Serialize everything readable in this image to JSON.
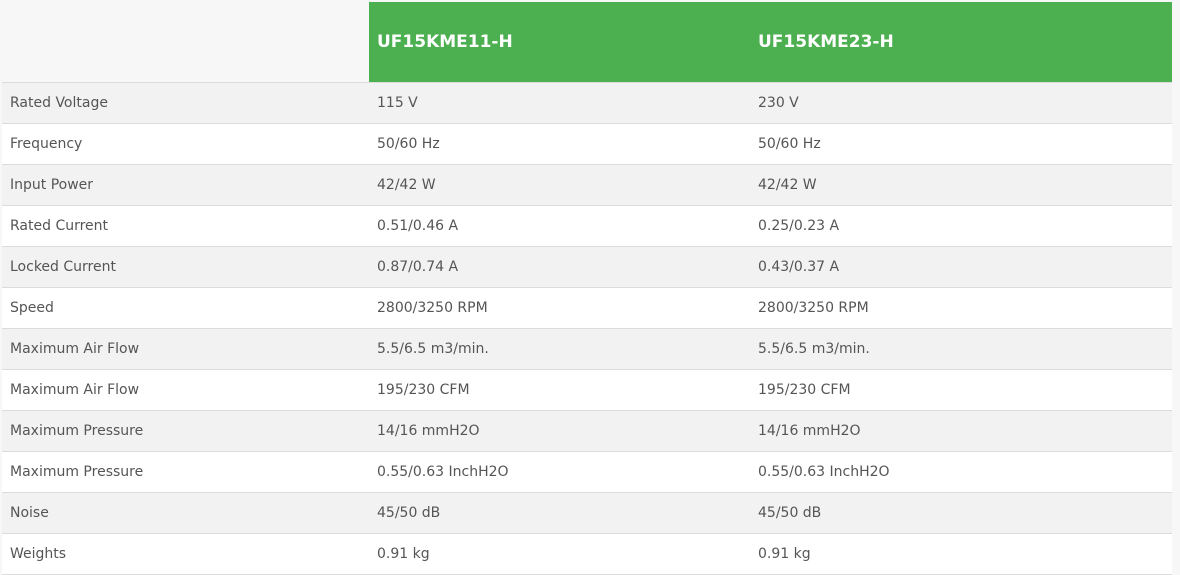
{
  "header": {
    "models": [
      "UF15KME11-H",
      "UF15KME23-H"
    ]
  },
  "colors": {
    "header_bg": "#4caf50",
    "row_alt": "#f2f2f2"
  },
  "rows": [
    {
      "label": "Rated Voltage",
      "values": [
        "115 V",
        "230 V"
      ]
    },
    {
      "label": "Frequency",
      "values": [
        "50/60 Hz",
        "50/60 Hz"
      ]
    },
    {
      "label": "Input Power",
      "values": [
        "42/42 W",
        "42/42 W"
      ]
    },
    {
      "label": "Rated Current",
      "values": [
        "0.51/0.46 A",
        "0.25/0.23 A"
      ]
    },
    {
      "label": "Locked Current",
      "values": [
        "0.87/0.74 A",
        "0.43/0.37 A"
      ]
    },
    {
      "label": "Speed",
      "values": [
        "2800/3250 RPM",
        "2800/3250 RPM"
      ]
    },
    {
      "label": "Maximum Air Flow",
      "values": [
        "5.5/6.5 m3/min.",
        "5.5/6.5 m3/min."
      ]
    },
    {
      "label": "Maximum Air Flow",
      "values": [
        "195/230 CFM",
        "195/230 CFM"
      ]
    },
    {
      "label": "Maximum Pressure",
      "values": [
        "14/16 mmH2O",
        "14/16 mmH2O"
      ]
    },
    {
      "label": "Maximum Pressure",
      "values": [
        "0.55/0.63 InchH2O",
        "0.55/0.63 InchH2O"
      ]
    },
    {
      "label": "Noise",
      "values": [
        "45/50 dB",
        "45/50 dB"
      ]
    },
    {
      "label": "Weights",
      "values": [
        "0.91 kg",
        "0.91 kg"
      ]
    }
  ]
}
